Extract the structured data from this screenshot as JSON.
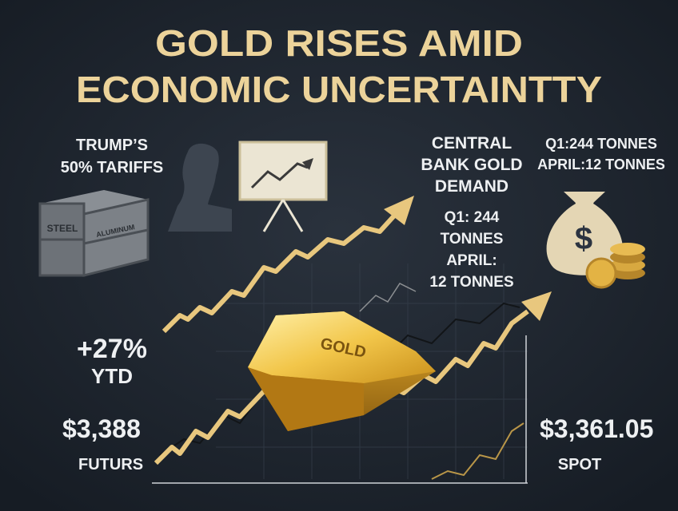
{
  "title": {
    "line1": "GOLD RISES AMID",
    "line2": "ECONOMIC UNCERTAINTTY"
  },
  "tariffs": {
    "line1": "TRUMP’S",
    "line2": "50% TARIFFS"
  },
  "crate": {
    "labels": [
      "STEEL",
      "ALUMINUM"
    ]
  },
  "central_bank": {
    "heading": [
      "CENTRAL",
      "BANK GOLD",
      "DEMAND"
    ],
    "stats": [
      "Q1: 244",
      "TONNES",
      "APRIL:",
      "12 TONNES"
    ]
  },
  "top_right": [
    "Q1:244 TONNES",
    "APRIL:12 TONNES"
  ],
  "ytd": {
    "change": "+27%",
    "label": "YTD"
  },
  "futures": {
    "price": "$3,388",
    "label": "FUTURS"
  },
  "spot": {
    "price": "$3,361.05",
    "label": "SPOT"
  },
  "gold_bar": "GOLD",
  "money_bag": "$"
}
